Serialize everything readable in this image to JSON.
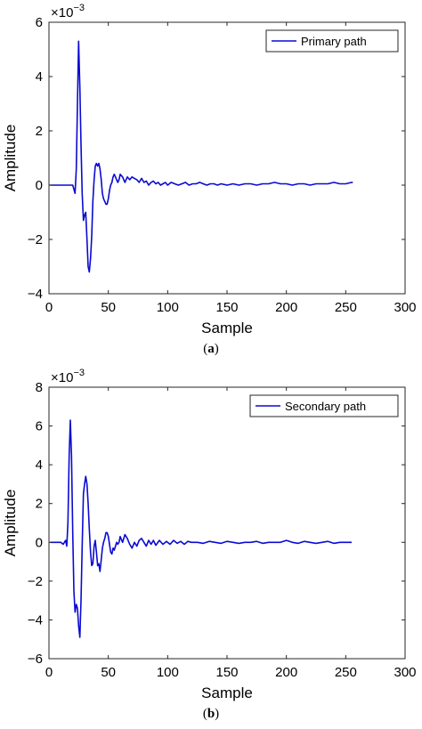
{
  "captions": [
    {
      "open": "(",
      "letter": "a",
      "close": ")"
    },
    {
      "open": "(",
      "letter": "b",
      "close": ")"
    }
  ],
  "colors": {
    "line": "#0a0ad2",
    "axis": "#262626"
  },
  "chart_data": [
    {
      "type": "line",
      "xlabel": "Sample",
      "ylabel": "Amplitude",
      "xlim": [
        0,
        300
      ],
      "ylim": [
        -4,
        6
      ],
      "xticks": [
        "0",
        "50",
        "100",
        "150",
        "200",
        "250",
        "300"
      ],
      "yticks": [
        "-4",
        "-2",
        "0",
        "2",
        "4",
        "6"
      ],
      "exponent": {
        "base": "×10",
        "power": "−3"
      },
      "grid": false,
      "legend_position": "top-right",
      "series": [
        {
          "name": "Primary path",
          "x": [
            1,
            5,
            10,
            15,
            20,
            22,
            23,
            24,
            25,
            26,
            27,
            28,
            29,
            30,
            31,
            32,
            33,
            34,
            35,
            36,
            37,
            38,
            39,
            40,
            41,
            42,
            43,
            44,
            45,
            46,
            47,
            48,
            49,
            50,
            51,
            52,
            53,
            54,
            55,
            56,
            57,
            58,
            59,
            60,
            62,
            64,
            66,
            68,
            70,
            72,
            74,
            76,
            78,
            80,
            82,
            84,
            86,
            88,
            90,
            92,
            94,
            96,
            98,
            100,
            103,
            106,
            109,
            112,
            115,
            118,
            121,
            124,
            127,
            130,
            133,
            136,
            139,
            142,
            145,
            150,
            155,
            160,
            165,
            170,
            175,
            180,
            185,
            190,
            195,
            200,
            205,
            210,
            215,
            220,
            225,
            230,
            235,
            240,
            245,
            250,
            255,
            256
          ],
          "y": [
            0.0,
            0.0,
            0.0,
            0.0,
            0.0,
            -0.3,
            0.6,
            3.0,
            5.3,
            3.6,
            1.5,
            -0.3,
            -1.3,
            -1.1,
            -1.0,
            -2.0,
            -3.0,
            -3.2,
            -2.7,
            -1.9,
            -0.6,
            0.2,
            0.7,
            0.8,
            0.7,
            0.8,
            0.6,
            0.2,
            -0.3,
            -0.5,
            -0.6,
            -0.7,
            -0.7,
            -0.5,
            -0.2,
            0.0,
            0.1,
            0.3,
            0.4,
            0.3,
            0.2,
            0.1,
            0.2,
            0.4,
            0.3,
            0.1,
            0.3,
            0.2,
            0.3,
            0.25,
            0.2,
            0.1,
            0.25,
            0.1,
            0.15,
            0.0,
            0.1,
            0.15,
            0.05,
            0.1,
            0.0,
            0.05,
            0.1,
            0.0,
            0.1,
            0.05,
            0.0,
            0.05,
            0.1,
            0.0,
            0.05,
            0.05,
            0.1,
            0.05,
            0.0,
            0.05,
            0.05,
            0.0,
            0.05,
            0.0,
            0.05,
            0.0,
            0.05,
            0.05,
            0.0,
            0.05,
            0.05,
            0.1,
            0.05,
            0.05,
            0.0,
            0.05,
            0.05,
            0.0,
            0.05,
            0.05,
            0.05,
            0.1,
            0.05,
            0.05,
            0.1,
            0.1
          ]
        }
      ]
    },
    {
      "type": "line",
      "xlabel": "Sample",
      "ylabel": "Amplitude",
      "xlim": [
        0,
        300
      ],
      "ylim": [
        -6,
        8
      ],
      "xticks": [
        "0",
        "50",
        "100",
        "150",
        "200",
        "250",
        "300"
      ],
      "yticks": [
        "-6",
        "-4",
        "-2",
        "0",
        "2",
        "4",
        "6",
        "8"
      ],
      "exponent": {
        "base": "×10",
        "power": "−3"
      },
      "grid": false,
      "legend_position": "top-right",
      "series": [
        {
          "name": "Secondary path",
          "x": [
            1,
            5,
            10,
            12,
            14,
            15,
            16,
            17,
            18,
            19,
            20,
            21,
            22,
            23,
            24,
            25,
            26,
            27,
            28,
            29,
            30,
            31,
            32,
            33,
            34,
            35,
            36,
            37,
            38,
            39,
            40,
            41,
            42,
            43,
            44,
            45,
            46,
            47,
            48,
            49,
            50,
            51,
            52,
            53,
            54,
            55,
            56,
            57,
            58,
            59,
            60,
            62,
            64,
            66,
            68,
            70,
            72,
            74,
            76,
            78,
            80,
            82,
            84,
            86,
            88,
            90,
            93,
            96,
            99,
            102,
            105,
            108,
            111,
            114,
            117,
            120,
            125,
            130,
            135,
            140,
            145,
            150,
            155,
            160,
            165,
            170,
            175,
            180,
            185,
            190,
            195,
            200,
            205,
            210,
            215,
            220,
            225,
            230,
            235,
            240,
            245,
            250,
            255
          ],
          "y": [
            0.0,
            0.0,
            0.0,
            -0.1,
            0.1,
            -0.2,
            1.0,
            4.5,
            6.3,
            4.5,
            0.5,
            -2.5,
            -3.6,
            -3.2,
            -3.4,
            -4.3,
            -4.9,
            -3.0,
            -0.2,
            2.5,
            3.0,
            3.4,
            3.0,
            2.0,
            0.7,
            -0.5,
            -1.2,
            -1.1,
            -0.2,
            0.1,
            -0.5,
            -1.2,
            -1.1,
            -1.5,
            -0.9,
            -0.3,
            0.0,
            0.2,
            0.5,
            0.5,
            0.3,
            -0.1,
            -0.5,
            -0.6,
            -0.3,
            -0.4,
            -0.2,
            0.0,
            -0.1,
            0.0,
            0.3,
            0.0,
            0.4,
            0.2,
            -0.1,
            -0.3,
            0.0,
            -0.2,
            0.1,
            0.2,
            0.0,
            -0.2,
            0.1,
            -0.1,
            0.1,
            -0.15,
            0.1,
            -0.1,
            0.05,
            -0.1,
            0.1,
            -0.05,
            0.05,
            -0.1,
            0.05,
            0.0,
            0.0,
            -0.05,
            0.05,
            0.0,
            -0.05,
            0.05,
            0.0,
            -0.05,
            0.0,
            0.0,
            0.05,
            -0.05,
            0.0,
            0.0,
            0.0,
            0.1,
            0.0,
            -0.05,
            0.05,
            0.0,
            -0.05,
            0.0,
            0.05,
            -0.05,
            0.0,
            0.0,
            0.0
          ]
        }
      ]
    }
  ]
}
